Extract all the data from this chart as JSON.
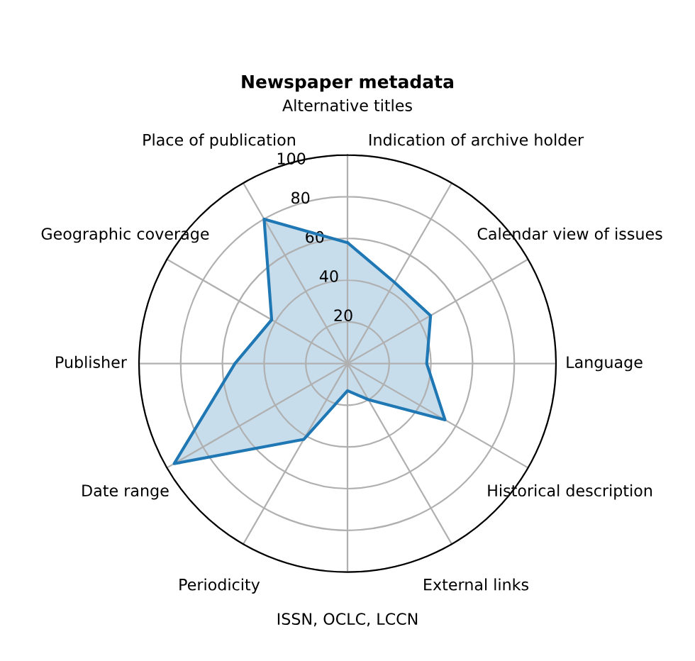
{
  "chart_data": {
    "type": "radar",
    "title": "Newspaper metadata",
    "categories": [
      "Alternative titles",
      "Indication of archive holder",
      "Calendar view of issues",
      "Language",
      "Historical description",
      "External links",
      "ISSN, OCLC, LCCN",
      "Periodicity",
      "Date range",
      "Publisher",
      "Geographic coverage",
      "Place of publication"
    ],
    "series": [
      {
        "color": "#1f77b4",
        "values": [
          58,
          45,
          46,
          38,
          54,
          20,
          13,
          42,
          96,
          54,
          42,
          80
        ]
      }
    ],
    "ylim": [
      0,
      100
    ],
    "yticks": [
      20,
      40,
      60,
      80,
      100
    ],
    "grid": true,
    "marker": "none",
    "line_style": "solid"
  }
}
